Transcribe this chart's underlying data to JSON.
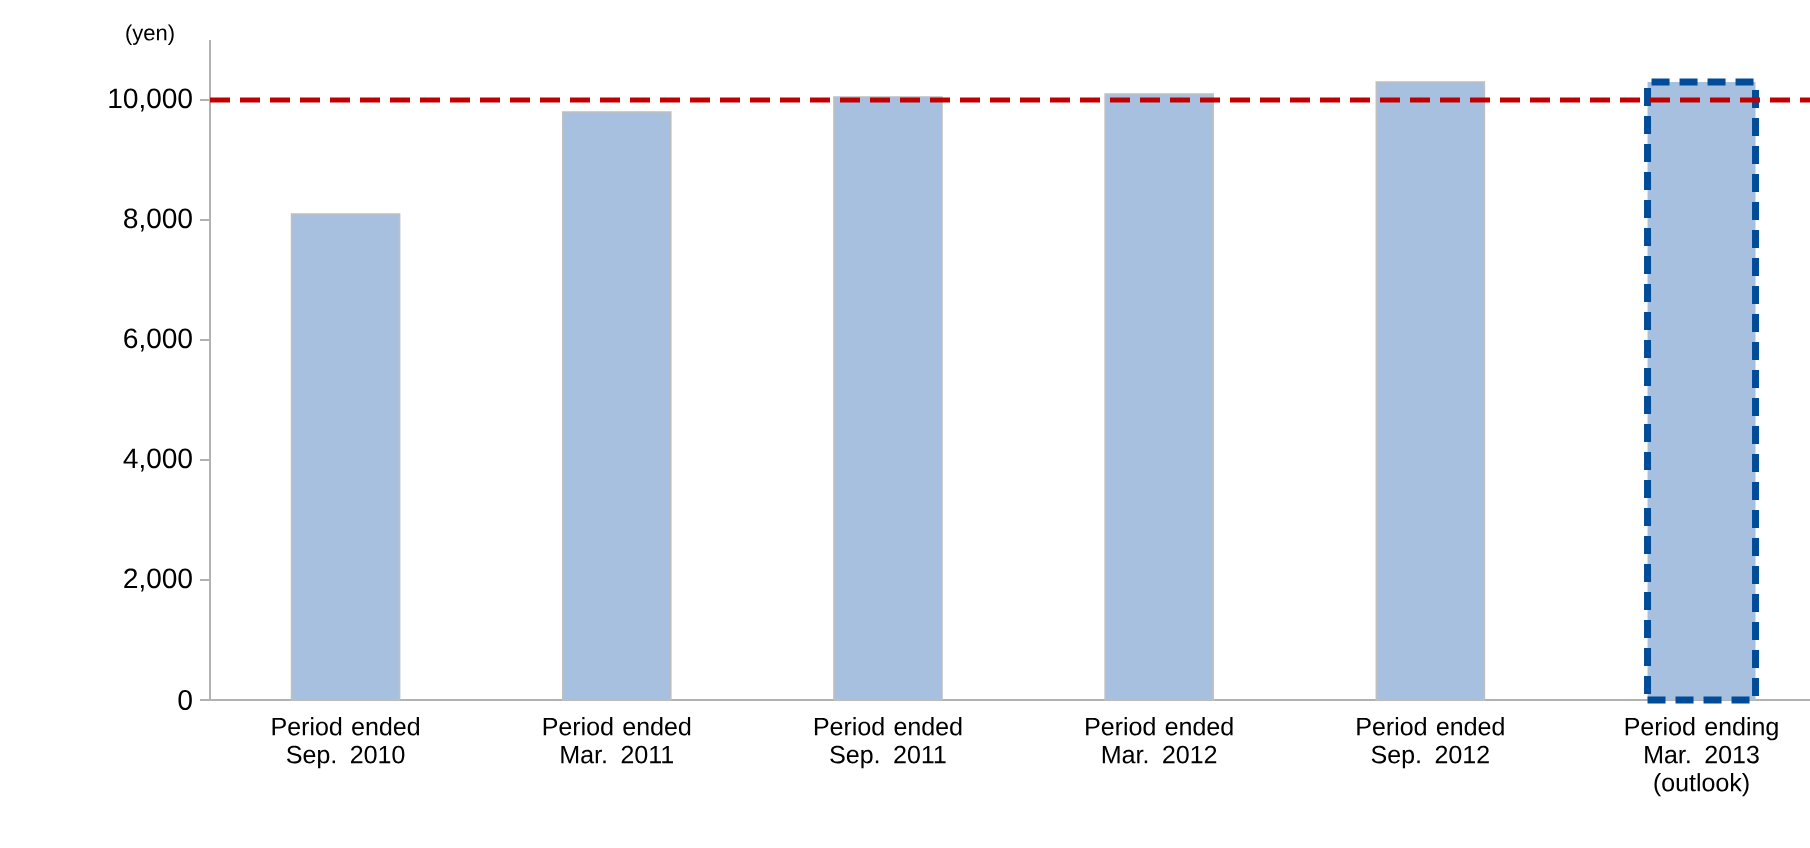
{
  "chart_data": {
    "type": "bar",
    "ylabel": "(yen)",
    "categories": [
      "Period ended Sep. 2010",
      "Period ended Mar. 2011",
      "Period ended Sep. 2011",
      "Period ended Mar. 2012",
      "Period ended Sep. 2012",
      "Period ending Mar. 2013 (outlook)"
    ],
    "values": [
      8100,
      9800,
      10050,
      10100,
      10300,
      10300
    ],
    "color": "#a7c0e0",
    "ylim": [
      0,
      11000
    ],
    "yticks": [
      {
        "value": 0,
        "label": "0"
      },
      {
        "value": 2000,
        "label": "2,000"
      },
      {
        "value": 4000,
        "label": "4,000"
      },
      {
        "value": 6000,
        "label": "6,000"
      },
      {
        "value": 8000,
        "label": "8,000"
      },
      {
        "value": 10000,
        "label": "10,000"
      }
    ],
    "ref_lines": [
      {
        "axis": "y",
        "value": 10000,
        "color": "#c00000",
        "line_style": "dashed"
      }
    ]
  }
}
